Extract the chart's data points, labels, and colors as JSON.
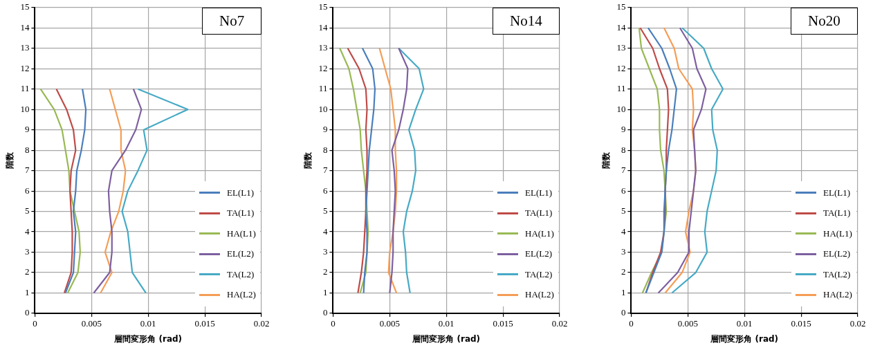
{
  "chart_data": [
    {
      "type": "line",
      "title": "No7",
      "xlabel": "層間変形角 (rad)",
      "ylabel": "階数",
      "xlim": [
        0,
        0.02
      ],
      "xticks": [
        0,
        0.005,
        0.01,
        0.015,
        0.02
      ],
      "ylim": [
        0,
        15
      ],
      "yticks": [
        0,
        1,
        2,
        3,
        4,
        5,
        6,
        7,
        8,
        9,
        10,
        11,
        12,
        13,
        14,
        15
      ],
      "grid": true,
      "legend": "bottom right",
      "marker": "none",
      "line_style": "solid",
      "series": [
        {
          "name": "EL(L1)",
          "color": "#4a7ebb",
          "x": [
            0.0027,
            0.0034,
            0.0035,
            0.0036,
            0.0034,
            0.0036,
            0.0037,
            0.0041,
            0.0044,
            0.0045,
            0.0042
          ],
          "values": [
            1,
            2,
            3,
            4,
            5,
            6,
            7,
            8,
            9,
            10,
            11
          ]
        },
        {
          "name": "TA(L1)",
          "color": "#be4b48",
          "x": [
            0.0026,
            0.0032,
            0.0033,
            0.0033,
            0.0032,
            0.0031,
            0.0032,
            0.0036,
            0.0034,
            0.0028,
            0.0019
          ],
          "values": [
            1,
            2,
            3,
            4,
            5,
            6,
            7,
            8,
            9,
            10,
            11
          ]
        },
        {
          "name": "HA(L1)",
          "color": "#98b954",
          "x": [
            0.0029,
            0.0038,
            0.004,
            0.0039,
            0.0035,
            0.0031,
            0.003,
            0.0027,
            0.0024,
            0.0017,
            0.0005
          ],
          "values": [
            1,
            2,
            3,
            4,
            5,
            6,
            7,
            8,
            9,
            10,
            11
          ]
        },
        {
          "name": "EL(L2)",
          "color": "#7d5fa0",
          "x": [
            0.0052,
            0.0066,
            0.0068,
            0.0068,
            0.0066,
            0.0065,
            0.0068,
            0.008,
            0.0089,
            0.0094,
            0.0087
          ],
          "values": [
            1,
            2,
            3,
            4,
            5,
            6,
            7,
            8,
            9,
            10,
            11
          ]
        },
        {
          "name": "TA(L2)",
          "color": "#46aac5",
          "x": [
            0.0098,
            0.0086,
            0.0084,
            0.0082,
            0.0077,
            0.0082,
            0.0091,
            0.0099,
            0.0096,
            0.0135,
            0.0091
          ],
          "values": [
            1,
            2,
            3,
            4,
            5,
            6,
            7,
            8,
            9,
            10,
            11
          ]
        },
        {
          "name": "HA(L2)",
          "color": "#f59d56",
          "x": [
            0.0058,
            0.0068,
            0.0062,
            0.0067,
            0.0074,
            0.0078,
            0.008,
            0.0076,
            0.0076,
            0.0071,
            0.0066
          ],
          "values": [
            1,
            2,
            3,
            4,
            5,
            6,
            7,
            8,
            9,
            10,
            11
          ]
        }
      ]
    },
    {
      "type": "line",
      "title": "No14",
      "xlabel": "層間変形角 (rad)",
      "ylabel": "階数",
      "xlim": [
        0,
        0.02
      ],
      "xticks": [
        0,
        0.005,
        0.01,
        0.015,
        0.02
      ],
      "ylim": [
        0,
        15
      ],
      "yticks": [
        0,
        1,
        2,
        3,
        4,
        5,
        6,
        7,
        8,
        9,
        10,
        11,
        12,
        13,
        14,
        15
      ],
      "grid": true,
      "legend": "bottom right",
      "marker": "none",
      "line_style": "solid",
      "series": [
        {
          "name": "EL(L1)",
          "color": "#4a7ebb",
          "x": [
            0.0027,
            0.0028,
            0.003,
            0.003,
            0.0029,
            0.003,
            0.0031,
            0.0032,
            0.0034,
            0.0036,
            0.0037,
            0.0035,
            0.0026
          ],
          "values": [
            1,
            2,
            3,
            4,
            5,
            6,
            7,
            8,
            9,
            10,
            11,
            12,
            13
          ]
        },
        {
          "name": "TA(L1)",
          "color": "#be4b48",
          "x": [
            0.0022,
            0.0025,
            0.0027,
            0.0028,
            0.0029,
            0.0029,
            0.003,
            0.003,
            0.0029,
            0.003,
            0.0029,
            0.0023,
            0.0013
          ],
          "values": [
            1,
            2,
            3,
            4,
            5,
            6,
            7,
            8,
            9,
            10,
            11,
            12,
            13
          ]
        },
        {
          "name": "HA(L1)",
          "color": "#98b954",
          "x": [
            0.0024,
            0.0029,
            0.003,
            0.0031,
            0.003,
            0.0029,
            0.0027,
            0.0025,
            0.0024,
            0.0021,
            0.0018,
            0.0014,
            0.0006
          ],
          "values": [
            1,
            2,
            3,
            4,
            5,
            6,
            7,
            8,
            9,
            10,
            11,
            12,
            13
          ]
        },
        {
          "name": "EL(L2)",
          "color": "#7d5fa0",
          "x": [
            0.005,
            0.0052,
            0.0053,
            0.0053,
            0.0054,
            0.0055,
            0.0054,
            0.0052,
            0.0058,
            0.0062,
            0.0065,
            0.0066,
            0.0058
          ],
          "values": [
            1,
            2,
            3,
            4,
            5,
            6,
            7,
            8,
            9,
            10,
            11,
            12,
            13
          ]
        },
        {
          "name": "TA(L2)",
          "color": "#46aac5",
          "x": [
            0.0068,
            0.0065,
            0.0064,
            0.0062,
            0.0065,
            0.007,
            0.0073,
            0.0072,
            0.0067,
            0.0073,
            0.008,
            0.0076,
            0.0058
          ],
          "values": [
            1,
            2,
            3,
            4,
            5,
            6,
            7,
            8,
            9,
            10,
            11,
            12,
            13
          ]
        },
        {
          "name": "HA(L2)",
          "color": "#f59d56",
          "x": [
            0.0056,
            0.0049,
            0.005,
            0.0053,
            0.0055,
            0.0056,
            0.0056,
            0.0055,
            0.0055,
            0.0053,
            0.0051,
            0.0046,
            0.0041
          ],
          "values": [
            1,
            2,
            3,
            4,
            5,
            6,
            7,
            8,
            9,
            10,
            11,
            12,
            13
          ]
        }
      ]
    },
    {
      "type": "line",
      "title": "No20",
      "xlabel": "層間変形角 (rad)",
      "ylabel": "階数",
      "xlim": [
        0,
        0.02
      ],
      "xticks": [
        0,
        0.005,
        0.01,
        0.015,
        0.02
      ],
      "ylim": [
        0,
        15
      ],
      "yticks": [
        0,
        1,
        2,
        3,
        4,
        5,
        6,
        7,
        8,
        9,
        10,
        11,
        12,
        13,
        14,
        15
      ],
      "grid": true,
      "legend": "bottom right",
      "marker": "none",
      "line_style": "solid",
      "series": [
        {
          "name": "EL(L1)",
          "color": "#4a7ebb",
          "x": [
            0.0013,
            0.002,
            0.0027,
            0.0029,
            0.0029,
            0.003,
            0.0031,
            0.0033,
            0.0036,
            0.0038,
            0.004,
            0.0034,
            0.0027,
            0.0015
          ],
          "values": [
            1,
            2,
            3,
            4,
            5,
            6,
            7,
            8,
            9,
            10,
            11,
            12,
            13,
            14
          ]
        },
        {
          "name": "TA(L1)",
          "color": "#be4b48",
          "x": [
            0.0013,
            0.0019,
            0.0026,
            0.0029,
            0.003,
            0.003,
            0.0031,
            0.0031,
            0.0032,
            0.0033,
            0.0032,
            0.0025,
            0.0019,
            0.0008
          ],
          "values": [
            1,
            2,
            3,
            4,
            5,
            6,
            7,
            8,
            9,
            10,
            11,
            12,
            13,
            14
          ]
        },
        {
          "name": "HA(L1)",
          "color": "#98b954",
          "x": [
            0.001,
            0.0018,
            0.0027,
            0.0029,
            0.0031,
            0.003,
            0.0029,
            0.0026,
            0.0025,
            0.0025,
            0.0023,
            0.0016,
            0.0009,
            0.0007
          ],
          "values": [
            1,
            2,
            3,
            4,
            5,
            6,
            7,
            8,
            9,
            10,
            11,
            12,
            13,
            14
          ]
        },
        {
          "name": "EL(L2)",
          "color": "#7d5fa0",
          "x": [
            0.0024,
            0.0041,
            0.0051,
            0.0051,
            0.0053,
            0.0055,
            0.0057,
            0.0056,
            0.0055,
            0.0062,
            0.0066,
            0.0058,
            0.0054,
            0.0043
          ],
          "values": [
            1,
            2,
            3,
            4,
            5,
            6,
            7,
            8,
            9,
            10,
            11,
            12,
            13,
            14
          ]
        },
        {
          "name": "TA(L2)",
          "color": "#46aac5",
          "x": [
            0.0036,
            0.0057,
            0.0067,
            0.0065,
            0.0067,
            0.0071,
            0.0075,
            0.0076,
            0.0072,
            0.0071,
            0.0081,
            0.0071,
            0.0064,
            0.0045
          ],
          "values": [
            1,
            2,
            3,
            4,
            5,
            6,
            7,
            8,
            9,
            10,
            11,
            12,
            13,
            14
          ]
        },
        {
          "name": "HA(L2)",
          "color": "#f59d56",
          "x": [
            0.003,
            0.0045,
            0.0052,
            0.0048,
            0.0051,
            0.0055,
            0.0057,
            0.0056,
            0.0054,
            0.0055,
            0.0054,
            0.0042,
            0.0038,
            0.0029
          ],
          "values": [
            1,
            2,
            3,
            4,
            5,
            6,
            7,
            8,
            9,
            10,
            11,
            12,
            13,
            14
          ]
        }
      ]
    }
  ]
}
